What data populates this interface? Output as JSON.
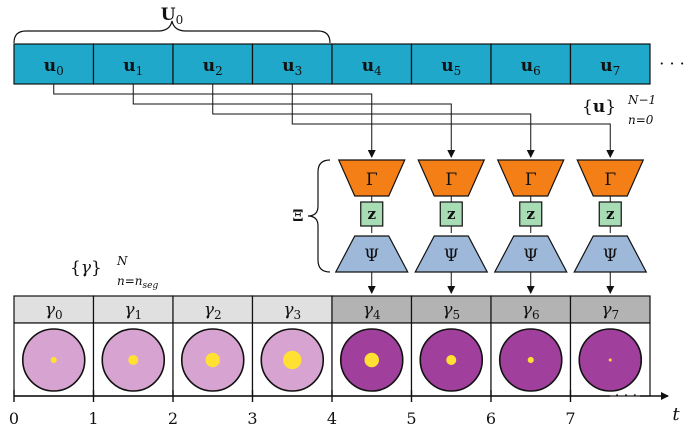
{
  "u_group_label": "U",
  "u_group_sub": "0",
  "u_cells": [
    {
      "base": "u",
      "sub": "0"
    },
    {
      "base": "u",
      "sub": "1"
    },
    {
      "base": "u",
      "sub": "2"
    },
    {
      "base": "u",
      "sub": "3"
    },
    {
      "base": "u",
      "sub": "4"
    },
    {
      "base": "u",
      "sub": "5"
    },
    {
      "base": "u",
      "sub": "6"
    },
    {
      "base": "u",
      "sub": "7"
    }
  ],
  "u_ellipsis": "· · ·",
  "u_set_label": {
    "open": "{",
    "base": "u",
    "close": "}",
    "sup": "N−1",
    "sub": "n=0"
  },
  "encoder_label": "Γ",
  "latent_label": "z",
  "decoder_label": "Ψ",
  "xi_label": "Ξ",
  "gamma_set_label": {
    "open": "{",
    "base": "γ",
    "close": "}",
    "sup": "N",
    "sub": "n=n",
    "subsub": "seg"
  },
  "gamma_cells": [
    {
      "base": "γ",
      "sub": "0"
    },
    {
      "base": "γ",
      "sub": "1"
    },
    {
      "base": "γ",
      "sub": "2"
    },
    {
      "base": "γ",
      "sub": "3"
    },
    {
      "base": "γ",
      "sub": "4"
    },
    {
      "base": "γ",
      "sub": "5"
    },
    {
      "base": "γ",
      "sub": "6"
    },
    {
      "base": "γ",
      "sub": "7"
    }
  ],
  "spot_sizes": [
    0.22,
    0.36,
    0.52,
    0.66,
    0.52,
    0.36,
    0.22,
    0.08
  ],
  "axis_ticks": [
    "0",
    "1",
    "2",
    "3",
    "4",
    "5",
    "6",
    "7"
  ],
  "axis_ellipsis": "· · ·",
  "axis_label": "t",
  "colors": {
    "u_fill": "#1fa8c9",
    "encoder_fill": "#f57f17",
    "latent_fill": "#a8dcb5",
    "decoder_fill": "#9db8d9",
    "gamma_light_fill": "#e0e0e0",
    "gamma_dark_fill": "#b3b3b3",
    "circle_light": "#d7a3d0",
    "circle_dark": "#a0409c",
    "spot": "#ffe033"
  }
}
